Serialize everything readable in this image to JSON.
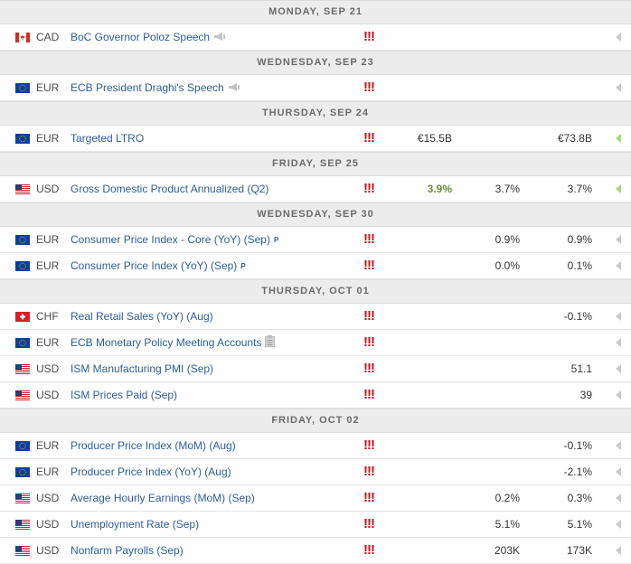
{
  "colors": {
    "importance": "#c8141e",
    "actual_better": "#6b8e3a",
    "event_link": "#2f5d9a",
    "arrow_default": "#c9c9c9",
    "arrow_active": "#a8d47a"
  },
  "groups": [
    {
      "date": "MONDAY, SEP 21",
      "events": [
        {
          "flag": "ca",
          "currency": "CAD",
          "event": "BoC Governor Poloz Speech",
          "icon": "speech-icon",
          "importance": "!!!",
          "actual": "",
          "forecast": "",
          "previous": "",
          "arrow": "default"
        }
      ]
    },
    {
      "date": "WEDNESDAY, SEP 23",
      "events": [
        {
          "flag": "eu",
          "currency": "EUR",
          "event": "ECB President Draghi's Speech",
          "icon": "speech-icon",
          "importance": "!!!",
          "actual": "",
          "forecast": "",
          "previous": "",
          "arrow": "default"
        }
      ]
    },
    {
      "date": "THURSDAY, SEP 24",
      "events": [
        {
          "flag": "eu",
          "currency": "EUR",
          "event": "Targeted LTRO",
          "icon": "",
          "importance": "!!!",
          "actual": "€15.5B",
          "forecast": "",
          "previous": "€73.8B",
          "arrow": "active"
        }
      ]
    },
    {
      "date": "FRIDAY, SEP 25",
      "events": [
        {
          "flag": "us",
          "currency": "USD",
          "event": "Gross Domestic Product Annualized (Q2)",
          "icon": "",
          "importance": "!!!",
          "actual": "3.9%",
          "actual_better": true,
          "forecast": "3.7%",
          "previous": "3.7%",
          "arrow": "active"
        }
      ]
    },
    {
      "date": "WEDNESDAY, SEP 30",
      "events": [
        {
          "flag": "eu",
          "currency": "EUR",
          "event": "Consumer Price Index - Core (YoY) (Sep)",
          "icon": "",
          "tag": "P",
          "importance": "!!!",
          "actual": "",
          "forecast": "0.9%",
          "previous": "0.9%",
          "arrow": "default"
        },
        {
          "flag": "eu",
          "currency": "EUR",
          "event": "Consumer Price Index (YoY) (Sep)",
          "icon": "",
          "tag": "P",
          "importance": "!!!",
          "actual": "",
          "forecast": "0.0%",
          "previous": "0.1%",
          "arrow": "default"
        }
      ]
    },
    {
      "date": "THURSDAY, OCT 01",
      "events": [
        {
          "flag": "ch",
          "currency": "CHF",
          "event": "Real Retail Sales (YoY) (Aug)",
          "icon": "",
          "importance": "!!!",
          "actual": "",
          "forecast": "",
          "previous": "-0.1%",
          "arrow": "default"
        },
        {
          "flag": "eu",
          "currency": "EUR",
          "event": "ECB Monetary Policy Meeting Accounts",
          "icon": "report-icon",
          "importance": "!!!",
          "actual": "",
          "forecast": "",
          "previous": "",
          "arrow": "default"
        },
        {
          "flag": "us",
          "currency": "USD",
          "event": "ISM Manufacturing PMI (Sep)",
          "icon": "",
          "importance": "!!!",
          "actual": "",
          "forecast": "",
          "previous": "51.1",
          "arrow": "default"
        },
        {
          "flag": "us",
          "currency": "USD",
          "event": "ISM Prices Paid (Sep)",
          "icon": "",
          "importance": "!!!",
          "actual": "",
          "forecast": "",
          "previous": "39",
          "arrow": "default"
        }
      ]
    },
    {
      "date": "FRIDAY, OCT 02",
      "events": [
        {
          "flag": "eu",
          "currency": "EUR",
          "event": "Producer Price Index (MoM) (Aug)",
          "icon": "",
          "importance": "!!!",
          "actual": "",
          "forecast": "",
          "previous": "-0.1%",
          "arrow": "default"
        },
        {
          "flag": "eu",
          "currency": "EUR",
          "event": "Producer Price Index (YoY) (Aug)",
          "icon": "",
          "importance": "!!!",
          "actual": "",
          "forecast": "",
          "previous": "-2.1%",
          "arrow": "default"
        },
        {
          "flag": "us",
          "currency": "USD",
          "event": "Average Hourly Earnings (MoM) (Sep)",
          "icon": "",
          "importance": "!!!",
          "actual": "",
          "forecast": "0.2%",
          "previous": "0.3%",
          "arrow": "default"
        },
        {
          "flag": "us",
          "currency": "USD",
          "event": "Unemployment Rate (Sep)",
          "icon": "",
          "importance": "!!!",
          "actual": "",
          "forecast": "5.1%",
          "previous": "5.1%",
          "arrow": "default"
        },
        {
          "flag": "us",
          "currency": "USD",
          "event": "Nonfarm Payrolls (Sep)",
          "icon": "",
          "importance": "!!!",
          "actual": "",
          "forecast": "203K",
          "previous": "173K",
          "arrow": "default"
        }
      ]
    }
  ]
}
